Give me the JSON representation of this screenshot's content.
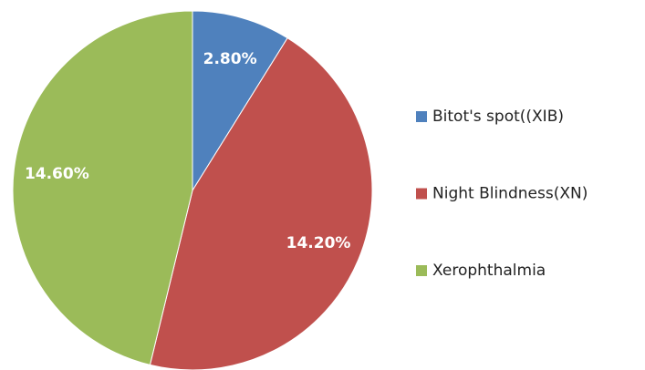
{
  "chart_data": {
    "type": "pie",
    "categories": [
      "Bitot's spot((XIB)",
      "Night Blindness(XN)",
      "Xerophthalmia"
    ],
    "values": [
      2.8,
      14.2,
      14.6
    ],
    "value_labels": [
      "2.80%",
      "14.20%",
      "14.60%"
    ],
    "colors": [
      "#4f81bd",
      "#c0504d",
      "#9bbb59"
    ],
    "legend": "right"
  }
}
